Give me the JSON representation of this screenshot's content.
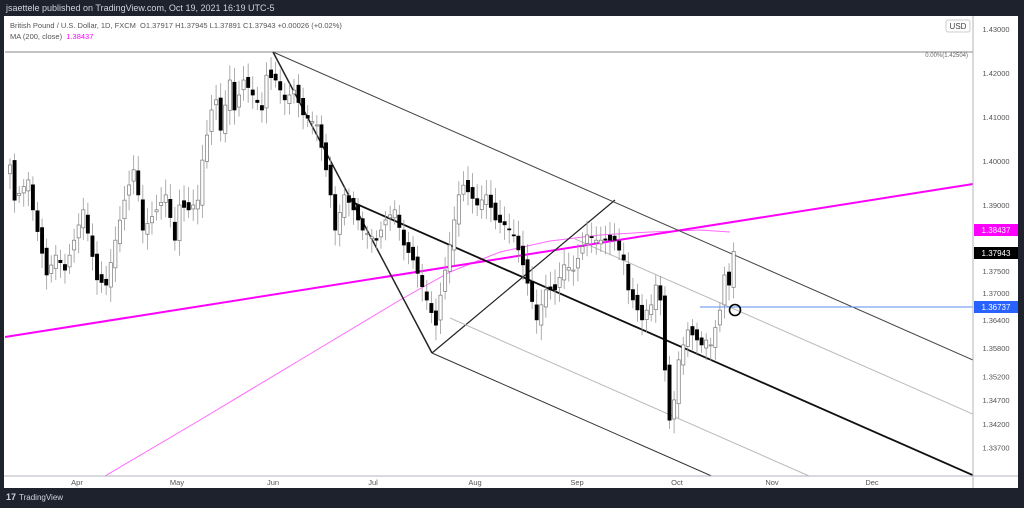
{
  "header": {
    "published": "jsaettele published on TradingView.com, Oct 19, 2021 16:19 UTC-5"
  },
  "legend": {
    "symbol": "British Pound / U.S. Dollar, 1D, FXCM",
    "ohlc": "O1.37917  H1.37945  L1.37891  C1.37943  +0.00026 (+0.02%)",
    "ma_label": "MA (200, close)",
    "ma_value": "1.38437"
  },
  "footer": {
    "brand": "TradingView"
  },
  "chart_data": {
    "type": "candlestick",
    "currency": "USD",
    "fib_label": "0.00%(1.42504)",
    "y_ticks": [
      "1.43000",
      "1.42000",
      "1.41000",
      "1.40000",
      "1.39000",
      "1.37500",
      "1.37000",
      "1.36400",
      "1.35800",
      "1.35200",
      "1.34700",
      "1.34200",
      "1.33700"
    ],
    "x_ticks": [
      "Apr",
      "May",
      "Jun",
      "Jul",
      "Aug",
      "Sep",
      "Oct",
      "Nov",
      "Dec"
    ],
    "price_labels": [
      {
        "value": "1.38437",
        "color": "#ff00ff"
      },
      {
        "value": "1.37943",
        "color": "#000000"
      },
      {
        "value": "1.36737",
        "color": "#2962ff"
      }
    ],
    "closes_approx": [
      [
        0,
        1.3991
      ],
      [
        1,
        1.3911
      ],
      [
        4,
        1.3957
      ],
      [
        5,
        1.3889
      ],
      [
        8,
        1.3741
      ],
      [
        10,
        1.3786
      ],
      [
        12,
        1.3752
      ],
      [
        14,
        1.382
      ],
      [
        16,
        1.3889
      ],
      [
        19,
        1.373
      ],
      [
        21,
        1.3718
      ],
      [
        23,
        1.382
      ],
      [
        25,
        1.3911
      ],
      [
        27,
        1.398
      ],
      [
        28,
        1.3923
      ],
      [
        29,
        1.3843
      ],
      [
        32,
        1.3889
      ],
      [
        34,
        1.3923
      ],
      [
        36,
        1.382
      ],
      [
        37,
        1.39
      ],
      [
        39,
        1.3889
      ],
      [
        41,
        1.3911
      ],
      [
        42,
        1.4002
      ],
      [
        44,
        1.4116
      ],
      [
        45,
        1.4139
      ],
      [
        46,
        1.407
      ],
      [
        48,
        1.4184
      ],
      [
        49,
        1.4116
      ],
      [
        51,
        1.4184
      ],
      [
        53,
        1.415
      ],
      [
        55,
        1.4116
      ],
      [
        56,
        1.4195
      ],
      [
        58,
        1.4184
      ],
      [
        60,
        1.4139
      ],
      [
        62,
        1.4161
      ],
      [
        64,
        1.4105
      ],
      [
        67,
        1.4082
      ],
      [
        69,
        1.398
      ],
      [
        70,
        1.3923
      ],
      [
        71,
        1.3843
      ],
      [
        73,
        1.3923
      ],
      [
        75,
        1.3889
      ],
      [
        77,
        1.3843
      ],
      [
        80,
        1.382
      ],
      [
        82,
        1.3866
      ],
      [
        84,
        1.3889
      ],
      [
        86,
        1.3809
      ],
      [
        88,
        1.3775
      ],
      [
        91,
        1.3684
      ],
      [
        93,
        1.3627
      ],
      [
        94,
        1.3695
      ],
      [
        96,
        1.3809
      ],
      [
        98,
        1.3923
      ],
      [
        99,
        1.3945
      ],
      [
        102,
        1.39
      ],
      [
        104,
        1.3923
      ],
      [
        106,
        1.3866
      ],
      [
        108,
        1.3855
      ],
      [
        110,
        1.3832
      ],
      [
        112,
        1.3764
      ],
      [
        115,
        1.3639
      ],
      [
        117,
        1.3707
      ],
      [
        119,
        1.3707
      ],
      [
        121,
        1.3764
      ],
      [
        123,
        1.3752
      ],
      [
        126,
        1.3832
      ],
      [
        128,
        1.382
      ],
      [
        130,
        1.382
      ],
      [
        132,
        1.382
      ],
      [
        134,
        1.3775
      ],
      [
        135,
        1.3707
      ],
      [
        138,
        1.3639
      ],
      [
        139,
        1.3661
      ],
      [
        140,
        1.3673
      ],
      [
        141,
        1.3718
      ],
      [
        142,
        1.3684
      ],
      [
        143,
        1.3525
      ],
      [
        144,
        1.3411
      ],
      [
        145,
        1.3457
      ],
      [
        146,
        1.3548
      ],
      [
        148,
        1.3616
      ],
      [
        151,
        1.3582
      ],
      [
        152,
        1.3593
      ],
      [
        153,
        1.3582
      ],
      [
        155,
        1.3661
      ],
      [
        156,
        1.3741
      ],
      [
        157,
        1.3718
      ],
      [
        158,
        1.37943
      ]
    ]
  }
}
